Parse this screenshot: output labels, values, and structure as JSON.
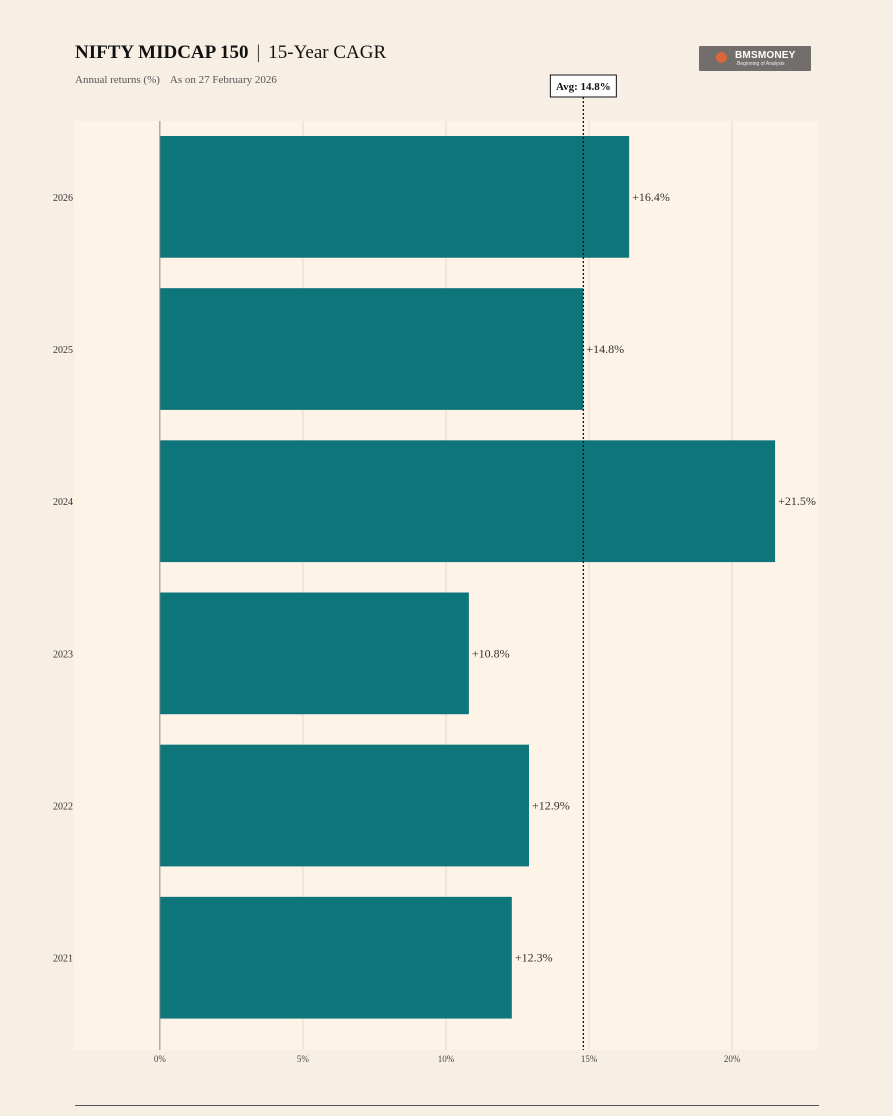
{
  "header": {
    "title_bold": "NIFTY MIDCAP 150",
    "title_separator": "|",
    "title_rest": "15-Year CAGR",
    "subtitle": "Annual returns (%)",
    "as_on": "As on 27 February 2026"
  },
  "logo": {
    "name": "BMSMONEY",
    "tagline": "Beginning of Analysis",
    "icon": "bms-logo-icon"
  },
  "colors": {
    "bar": "#0e757a",
    "background": "#f8efe4",
    "plot_background": "#fdf3e7",
    "grid": "#e8d8cc"
  },
  "chart_data": {
    "type": "bar",
    "orientation": "horizontal",
    "categories": [
      "2026",
      "2025",
      "2024",
      "2023",
      "2022",
      "2021"
    ],
    "values": [
      16.4,
      14.8,
      21.5,
      10.8,
      12.9,
      12.3
    ],
    "data_labels": [
      "+16.4%",
      "+14.8%",
      "+21.5%",
      "+10.8%",
      "+12.9%",
      "+12.3%"
    ],
    "xlim": [
      -3,
      23
    ],
    "xticks": [
      0,
      5,
      10,
      15,
      20
    ],
    "xtick_labels": [
      "0%",
      "5%",
      "10%",
      "15%",
      "20%"
    ],
    "average": {
      "value": 14.8,
      "label": "Avg: 14.8%"
    },
    "grid": true,
    "legend": false
  }
}
